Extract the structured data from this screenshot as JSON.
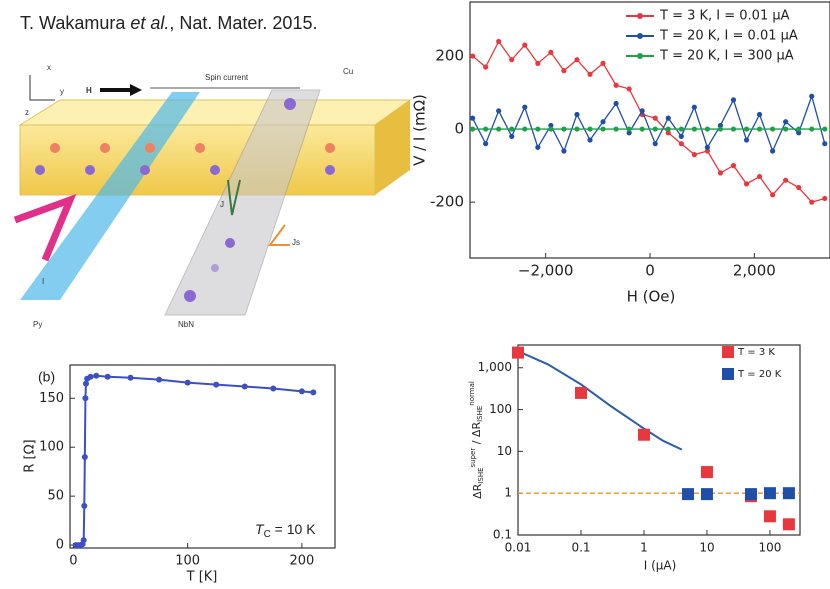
{
  "header": {
    "parts": [
      "T. Wakamura ",
      "et al.",
      ", Nat. Mater. 2015."
    ]
  },
  "diagram": {
    "labels": [
      "x",
      "y",
      "z",
      "H",
      "Spin current",
      "Cu",
      "J",
      "Js",
      "Py",
      "NbN",
      "I"
    ]
  },
  "chart_data": [
    {
      "type": "line",
      "xlabel": "H (Oe)",
      "ylabel": "V / I (mΩ)",
      "x": [
        -3400,
        -3150,
        -2900,
        -2650,
        -2400,
        -2150,
        -1900,
        -1650,
        -1400,
        -1150,
        -900,
        -650,
        -400,
        -150,
        100,
        350,
        600,
        850,
        1100,
        1350,
        1600,
        1850,
        2100,
        2350,
        2600,
        2850,
        3100,
        3350
      ],
      "series": [
        {
          "name": "T = 3 K, I = 0.01 μA",
          "color": "#e8383d",
          "values": [
            200,
            170,
            240,
            190,
            230,
            180,
            210,
            160,
            190,
            150,
            180,
            120,
            110,
            40,
            30,
            -10,
            -40,
            -70,
            -60,
            -120,
            -100,
            -150,
            -130,
            -180,
            -140,
            -160,
            -200,
            -190
          ]
        },
        {
          "name": "T = 20 K, I = 0.01 μA",
          "color": "#1f4fa8",
          "values": [
            30,
            -40,
            50,
            -20,
            60,
            -50,
            10,
            -60,
            40,
            -30,
            20,
            70,
            -10,
            50,
            -40,
            30,
            -20,
            60,
            -50,
            10,
            80,
            -30,
            40,
            -60,
            20,
            -10,
            90,
            -40
          ]
        },
        {
          "name": "T = 20 K, I = 300 μA",
          "color": "#1fa04a",
          "values": [
            0,
            0,
            0,
            0,
            0,
            0,
            0,
            0,
            0,
            0,
            0,
            0,
            0,
            0,
            0,
            0,
            0,
            0,
            0,
            0,
            0,
            0,
            0,
            0,
            0,
            0,
            0,
            0
          ]
        }
      ],
      "xlim": [
        -3450,
        3450
      ],
      "xticks": [
        {
          "value": -2000,
          "label": "−2,000"
        },
        0,
        {
          "value": 2000,
          "label": "2,000"
        }
      ],
      "ylim": [
        -353,
        348
      ],
      "yticks": [
        -200,
        0,
        200
      ]
    },
    {
      "type": "line",
      "panel_label": "(b)",
      "xlabel": "T [K]",
      "ylabel": "R [Ω]",
      "annotation": [
        "T",
        "C",
        " = 10 K"
      ],
      "x": [
        2,
        4,
        6,
        8,
        9,
        9.5,
        10,
        10.5,
        11,
        12,
        15,
        20,
        30,
        50,
        75,
        100,
        125,
        150,
        175,
        200,
        210
      ],
      "series": [
        {
          "color": "#3d4fc4",
          "values": [
            0,
            0,
            0,
            1,
            5,
            40,
            90,
            150,
            165,
            170,
            172,
            173,
            172,
            171,
            169,
            166,
            164,
            162,
            160,
            157,
            156
          ]
        }
      ],
      "xlim": [
        -3,
        229
      ],
      "xticks": [
        0,
        100,
        200
      ],
      "ylim": [
        -3,
        184
      ],
      "yticks": [
        0,
        50,
        100,
        150
      ]
    },
    {
      "type": "scatter",
      "xlabel": "I (μA)",
      "ylabel": [
        "ΔR",
        "ISHE",
        "super",
        " / ΔR",
        "ISHE",
        "normal"
      ],
      "xscale": "log",
      "yscale": "log",
      "series": [
        {
          "name": "T = 3 K",
          "color": "#e8383d",
          "x": [
            0.01,
            0.1,
            1,
            10,
            50,
            100,
            200
          ],
          "values": [
            2300,
            250,
            25,
            3.2,
            0.85,
            0.28,
            0.18
          ]
        },
        {
          "name": "T = 20 K",
          "color": "#1f4fa8",
          "x": [
            5,
            10,
            50,
            100,
            200
          ],
          "values": [
            0.95,
            0.95,
            0.95,
            1.0,
            1.0
          ]
        }
      ],
      "fit": {
        "color": "#2a5db0",
        "x": [
          0.01,
          0.03,
          0.1,
          0.3,
          1,
          2,
          4
        ],
        "values": [
          2500,
          1200,
          400,
          120,
          35,
          18,
          11
        ]
      },
      "reference_line": {
        "value": 1,
        "color": "#e8902a"
      },
      "xlim": [
        0.01,
        300
      ],
      "xticks": [
        0.01,
        0.1,
        1,
        10,
        100
      ],
      "ylim": [
        0.1,
        3500
      ],
      "yticks": [
        0.1,
        1,
        10,
        100,
        {
          "value": 1000,
          "label": "1,000"
        }
      ]
    }
  ]
}
